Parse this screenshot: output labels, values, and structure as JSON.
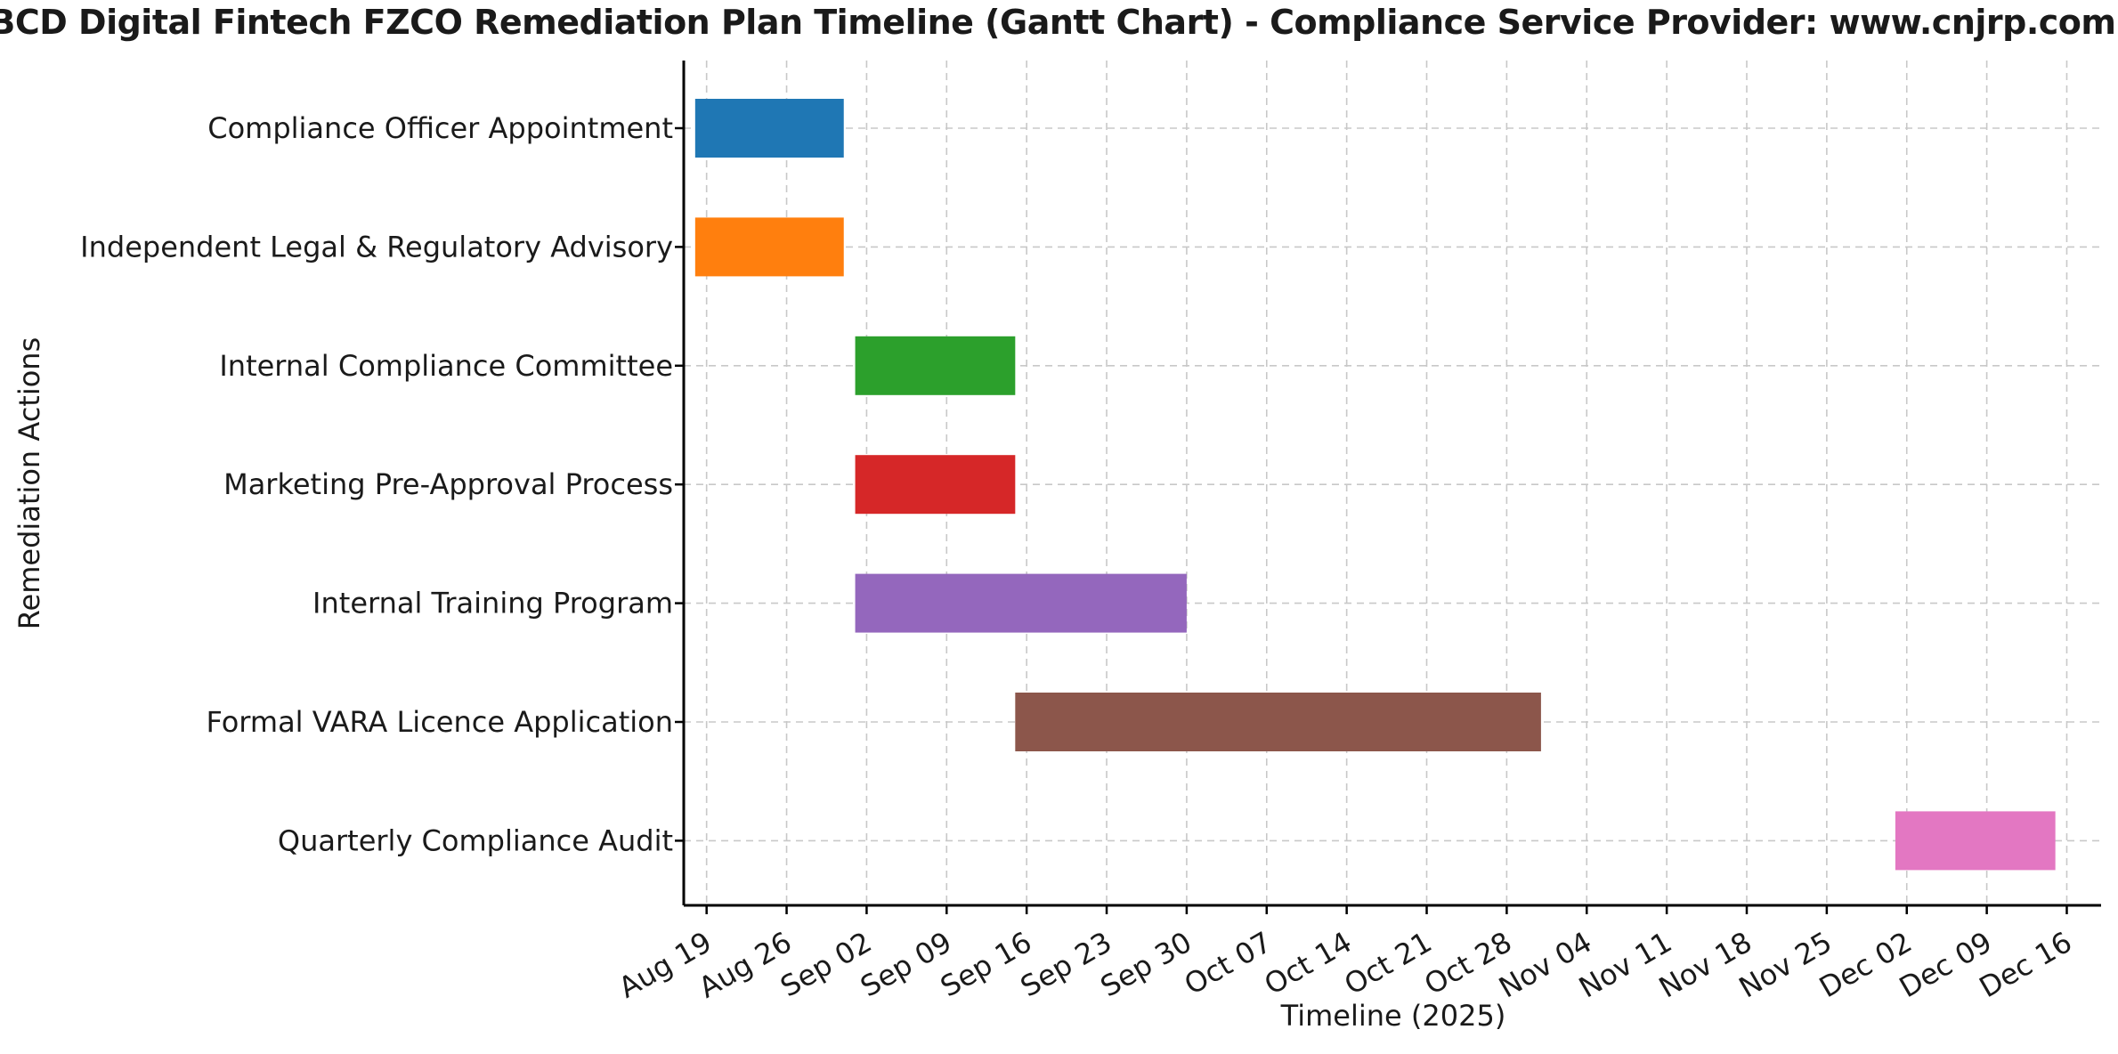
{
  "chart_data": {
    "type": "gantt",
    "title": "ABCD Digital Fintech FZCO Remediation Plan Timeline (Gantt Chart) - Compliance Service Provider: www.cnjrp.com",
    "xlabel": "Timeline (2025)",
    "ylabel": "Remediation Actions",
    "grid": true,
    "xlim": [
      "2025-08-17",
      "2025-12-19"
    ],
    "x_ticks": [
      "Aug 19",
      "Aug 26",
      "Sep 02",
      "Sep 09",
      "Sep 16",
      "Sep 23",
      "Sep 30",
      "Oct 07",
      "Oct 14",
      "Oct 21",
      "Oct 28",
      "Nov 04",
      "Nov 11",
      "Nov 18",
      "Nov 25",
      "Dec 02",
      "Dec 09",
      "Dec 16"
    ],
    "x_tick_dates": [
      "2025-08-19",
      "2025-08-26",
      "2025-09-02",
      "2025-09-09",
      "2025-09-16",
      "2025-09-23",
      "2025-09-30",
      "2025-10-07",
      "2025-10-14",
      "2025-10-21",
      "2025-10-28",
      "2025-11-04",
      "2025-11-11",
      "2025-11-18",
      "2025-11-25",
      "2025-12-02",
      "2025-12-09",
      "2025-12-16"
    ],
    "tasks": [
      {
        "label": "Compliance Officer Appointment",
        "start": "2025-08-18",
        "end": "2025-08-31",
        "color": "#1f77b4"
      },
      {
        "label": "Independent Legal & Regulatory Advisory",
        "start": "2025-08-18",
        "end": "2025-08-31",
        "color": "#ff7f0e"
      },
      {
        "label": "Internal Compliance Committee",
        "start": "2025-09-01",
        "end": "2025-09-15",
        "color": "#2ca02c"
      },
      {
        "label": "Marketing Pre-Approval Process",
        "start": "2025-09-01",
        "end": "2025-09-15",
        "color": "#d62728"
      },
      {
        "label": "Internal Training Program",
        "start": "2025-09-01",
        "end": "2025-09-30",
        "color": "#9467bd"
      },
      {
        "label": "Formal VARA Licence Application",
        "start": "2025-09-15",
        "end": "2025-10-31",
        "color": "#8c564b"
      },
      {
        "label": "Quarterly Compliance Audit",
        "start": "2025-12-01",
        "end": "2025-12-15",
        "color": "#e377c2"
      }
    ]
  }
}
